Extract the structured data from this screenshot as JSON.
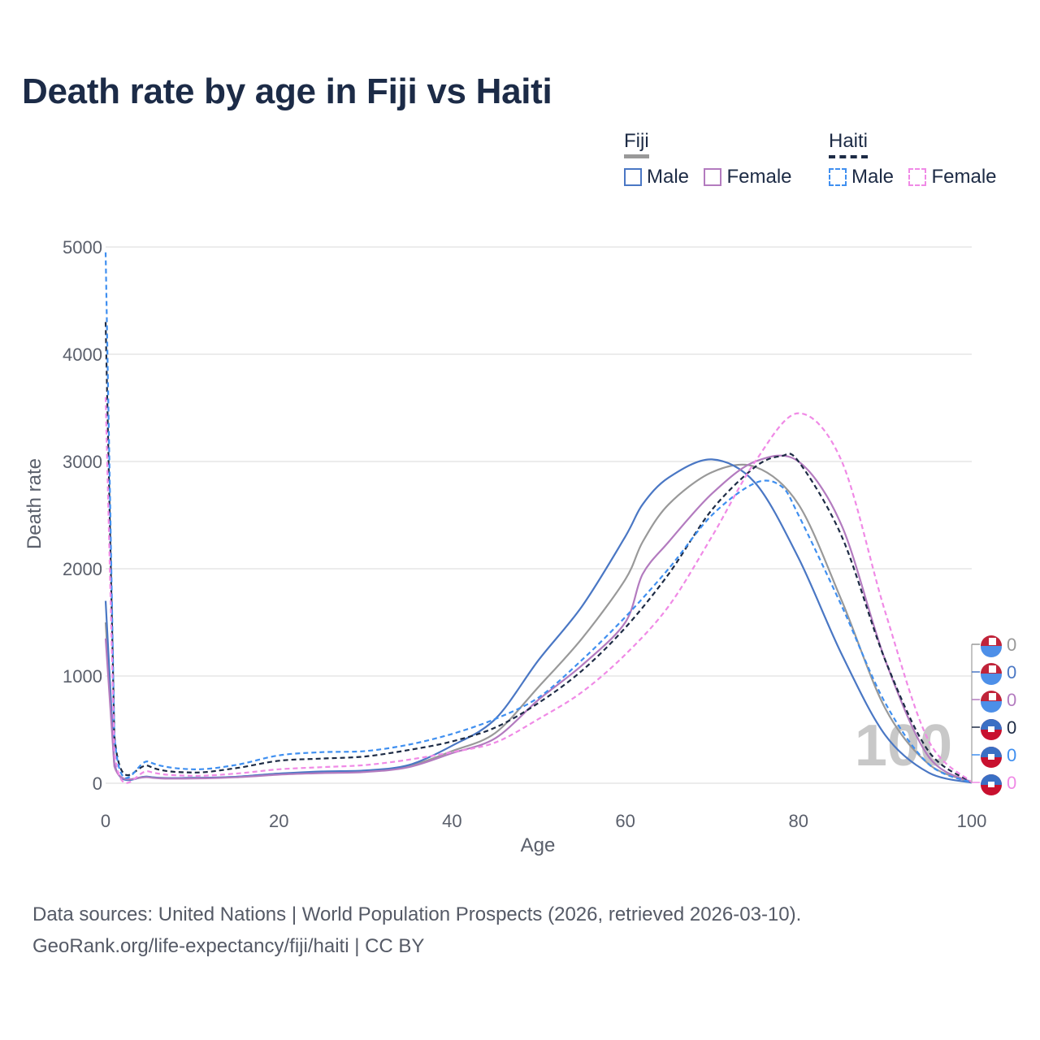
{
  "title": "Death rate by age in Fiji vs Haiti",
  "legend": {
    "groups": [
      {
        "name": "Fiji",
        "line_style": "solid",
        "bar_color": "#999999",
        "items": [
          {
            "label": "Male",
            "color": "#4a77c4"
          },
          {
            "label": "Female",
            "color": "#b37bbf"
          }
        ]
      },
      {
        "name": "Haiti",
        "line_style": "dashed",
        "bar_color": "#1d2b45",
        "items": [
          {
            "label": "Male",
            "color": "#3f8ff0"
          },
          {
            "label": "Female",
            "color": "#f08ae6"
          }
        ]
      }
    ]
  },
  "footer": {
    "line1": "Data sources: United Nations | World Population Prospects (2026, retrieved 2026-03-10).",
    "line2": "GeoRank.org/life-expectancy/fiji/haiti | CC BY"
  },
  "chart_data": {
    "type": "line",
    "title": "Death rate by age in Fiji vs Haiti",
    "xlabel": "Age",
    "ylabel": "Death rate",
    "xlim": [
      0,
      100
    ],
    "ylim": [
      0,
      5000
    ],
    "xticks": [
      0,
      20,
      40,
      60,
      80,
      100
    ],
    "yticks": [
      0,
      1000,
      2000,
      3000,
      4000,
      5000
    ],
    "grid": true,
    "overlay_label": "100",
    "series": [
      {
        "name": "Fiji Total",
        "color": "#999999",
        "dash": false,
        "end_label": "0",
        "x": [
          0,
          1,
          5,
          10,
          15,
          20,
          25,
          30,
          35,
          40,
          45,
          50,
          55,
          60,
          62,
          65,
          70,
          75,
          80,
          85,
          90,
          95,
          100
        ],
        "y": [
          1500,
          170,
          60,
          50,
          60,
          90,
          100,
          110,
          160,
          300,
          470,
          900,
          1350,
          1900,
          2250,
          2600,
          2900,
          2950,
          2600,
          1700,
          700,
          180,
          10
        ]
      },
      {
        "name": "Fiji Male",
        "color": "#4a77c4",
        "dash": false,
        "end_label": "0",
        "x": [
          0,
          1,
          5,
          10,
          15,
          20,
          25,
          30,
          35,
          40,
          45,
          50,
          55,
          60,
          62,
          65,
          70,
          75,
          80,
          85,
          90,
          95,
          100
        ],
        "y": [
          1700,
          180,
          60,
          50,
          60,
          90,
          110,
          120,
          170,
          350,
          600,
          1150,
          1650,
          2300,
          2600,
          2850,
          3020,
          2800,
          2100,
          1200,
          450,
          100,
          5
        ]
      },
      {
        "name": "Fiji Female",
        "color": "#b37bbf",
        "dash": false,
        "end_label": "0",
        "x": [
          0,
          1,
          5,
          10,
          15,
          20,
          25,
          30,
          35,
          40,
          45,
          50,
          55,
          60,
          62,
          65,
          70,
          75,
          80,
          85,
          90,
          95,
          100
        ],
        "y": [
          1350,
          160,
          55,
          45,
          55,
          80,
          95,
          105,
          150,
          280,
          420,
          780,
          1100,
          1500,
          1950,
          2250,
          2700,
          3000,
          3000,
          2400,
          1150,
          250,
          10
        ]
      },
      {
        "name": "Haiti Total",
        "color": "#1d2b45",
        "dash": true,
        "end_label": "0",
        "x": [
          0,
          1,
          5,
          10,
          15,
          20,
          25,
          30,
          35,
          40,
          45,
          50,
          55,
          60,
          65,
          70,
          75,
          78,
          80,
          85,
          90,
          95,
          100
        ],
        "y": [
          4300,
          450,
          160,
          100,
          140,
          210,
          230,
          250,
          310,
          390,
          520,
          750,
          1050,
          1450,
          1950,
          2550,
          2950,
          3050,
          3000,
          2300,
          1150,
          300,
          10
        ]
      },
      {
        "name": "Haiti Male",
        "color": "#3f8ff0",
        "dash": true,
        "end_label": "0",
        "x": [
          0,
          1,
          5,
          10,
          15,
          20,
          25,
          30,
          35,
          40,
          45,
          50,
          55,
          60,
          65,
          70,
          75,
          78,
          80,
          85,
          90,
          95,
          100
        ],
        "y": [
          4950,
          450,
          200,
          130,
          170,
          260,
          290,
          300,
          360,
          460,
          600,
          800,
          1150,
          1550,
          2000,
          2500,
          2800,
          2770,
          2500,
          1650,
          750,
          180,
          5
        ]
      },
      {
        "name": "Haiti Female",
        "color": "#f08ae6",
        "dash": true,
        "end_label": "0",
        "x": [
          0,
          1,
          5,
          10,
          15,
          20,
          25,
          30,
          35,
          40,
          45,
          50,
          55,
          60,
          65,
          70,
          75,
          80,
          85,
          90,
          95,
          100
        ],
        "y": [
          3600,
          300,
          110,
          70,
          90,
          130,
          150,
          170,
          220,
          290,
          380,
          600,
          850,
          1200,
          1650,
          2300,
          3000,
          3450,
          3000,
          1600,
          400,
          10
        ]
      }
    ]
  }
}
